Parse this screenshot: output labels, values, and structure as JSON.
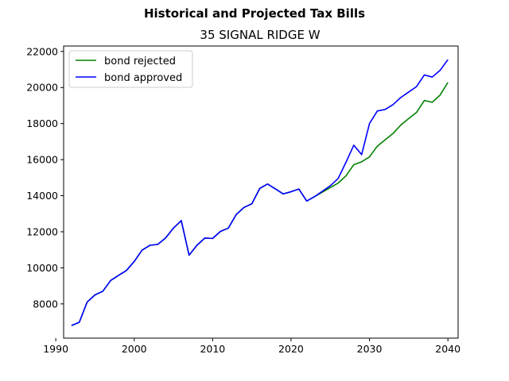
{
  "chart_data": {
    "type": "line",
    "suptitle": "Historical and Projected Tax Bills",
    "title": "35 SIGNAL RIDGE W",
    "xlabel": "",
    "ylabel": "",
    "xlim": [
      1991,
      2041.3
    ],
    "ylim": [
      6100,
      22300
    ],
    "xticks": [
      1990,
      2000,
      2010,
      2020,
      2030,
      2040
    ],
    "xtick_labels": [
      "1990",
      "2000",
      "2010",
      "2020",
      "2030",
      "2040"
    ],
    "yticks": [
      8000,
      10000,
      12000,
      14000,
      16000,
      18000,
      20000,
      22000
    ],
    "ytick_labels": [
      "8000",
      "10000",
      "12000",
      "14000",
      "16000",
      "18000",
      "20000",
      "22000"
    ],
    "grid": false,
    "legend_position": "upper-left",
    "series": [
      {
        "name": "bond rejected",
        "color": "#008000",
        "x": [
          1992,
          1993,
          1994,
          1995,
          1996,
          1997,
          1998,
          1999,
          2000,
          2001,
          2002,
          2003,
          2004,
          2005,
          2006,
          2007,
          2008,
          2009,
          2010,
          2011,
          2012,
          2013,
          2014,
          2015,
          2016,
          2017,
          2018,
          2019,
          2020,
          2021,
          2022,
          2023,
          2024,
          2025,
          2026,
          2027,
          2028,
          2029,
          2030,
          2031,
          2032,
          2033,
          2034,
          2035,
          2036,
          2037,
          2038,
          2039,
          2040
        ],
        "y": [
          6800,
          6980,
          8100,
          8500,
          8700,
          9300,
          9580,
          9850,
          10350,
          10980,
          11250,
          11300,
          11650,
          12200,
          12620,
          10700,
          11250,
          11650,
          11630,
          12020,
          12200,
          12950,
          13350,
          13550,
          14400,
          14650,
          14380,
          14100,
          14220,
          14370,
          13700,
          13950,
          14200,
          14450,
          14700,
          15100,
          15720,
          15880,
          16150,
          16750,
          17100,
          17450,
          17920,
          18280,
          18620,
          19280,
          19180,
          19580,
          20280
        ]
      },
      {
        "name": "bond approved",
        "color": "#0000ff",
        "x": [
          1992,
          1993,
          1994,
          1995,
          1996,
          1997,
          1998,
          1999,
          2000,
          2001,
          2002,
          2003,
          2004,
          2005,
          2006,
          2007,
          2008,
          2009,
          2010,
          2011,
          2012,
          2013,
          2014,
          2015,
          2016,
          2017,
          2018,
          2019,
          2020,
          2021,
          2022,
          2023,
          2024,
          2025,
          2026,
          2027,
          2028,
          2029,
          2030,
          2031,
          2032,
          2033,
          2034,
          2035,
          2036,
          2037,
          2038,
          2039,
          2040
        ],
        "y": [
          6800,
          6980,
          8100,
          8500,
          8700,
          9300,
          9580,
          9850,
          10350,
          10980,
          11250,
          11300,
          11650,
          12200,
          12620,
          10700,
          11250,
          11650,
          11630,
          12020,
          12200,
          12950,
          13350,
          13550,
          14400,
          14650,
          14380,
          14100,
          14220,
          14370,
          13700,
          13950,
          14250,
          14550,
          14950,
          15850,
          16800,
          16280,
          18000,
          18700,
          18780,
          19050,
          19450,
          19750,
          20050,
          20700,
          20580,
          20950,
          21550
        ]
      }
    ]
  }
}
